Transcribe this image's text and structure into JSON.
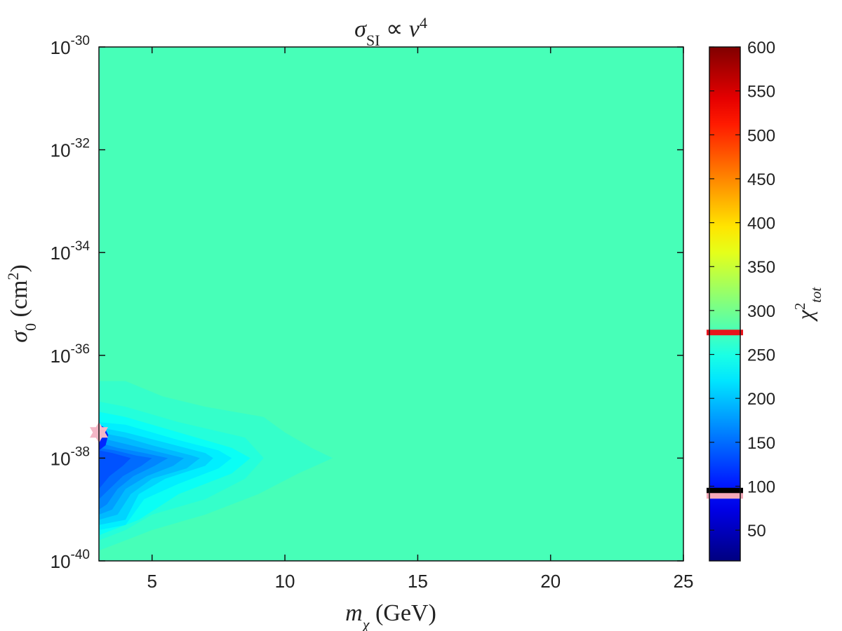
{
  "chart_data": {
    "type": "heatmap",
    "plot_style": "filled-contour",
    "title": {
      "parts": [
        {
          "text": "σ",
          "style": "italic"
        },
        {
          "text": "SI",
          "style": "sub"
        },
        {
          "text": " ∝ ",
          "style": "normal"
        },
        {
          "text": "v",
          "style": "italic"
        },
        {
          "text": "4",
          "style": "sup"
        }
      ]
    },
    "x_axis": {
      "label_parts": [
        {
          "text": "m",
          "style": "italic"
        },
        {
          "text": "χ",
          "style": "sub-italic"
        },
        {
          "text": " (GeV)",
          "style": "normal"
        }
      ],
      "range": [
        3,
        25
      ],
      "scale": "linear",
      "ticks": [
        {
          "value": 5,
          "label": "5"
        },
        {
          "value": 10,
          "label": "10"
        },
        {
          "value": 15,
          "label": "15"
        },
        {
          "value": 20,
          "label": "20"
        },
        {
          "value": 25,
          "label": "25"
        }
      ]
    },
    "y_axis": {
      "label_parts": [
        {
          "text": "σ",
          "style": "italic"
        },
        {
          "text": "0",
          "style": "sub"
        },
        {
          "text": " (cm",
          "style": "normal"
        },
        {
          "text": "2",
          "style": "sup"
        },
        {
          "text": ")",
          "style": "normal"
        }
      ],
      "range": [
        -40,
        -30
      ],
      "scale": "log10",
      "ticks": [
        {
          "exp": -30,
          "base": "10",
          "sup": "-30"
        },
        {
          "exp": -32,
          "base": "10",
          "sup": "-32"
        },
        {
          "exp": -34,
          "base": "10",
          "sup": "-34"
        },
        {
          "exp": -36,
          "base": "10",
          "sup": "-36"
        },
        {
          "exp": -38,
          "base": "10",
          "sup": "-38"
        },
        {
          "exp": -40,
          "base": "10",
          "sup": "-40"
        }
      ]
    },
    "colorbar": {
      "colormap": "jet",
      "range": [
        15,
        600
      ],
      "label_parts": [
        {
          "text": "χ",
          "style": "italic"
        },
        {
          "text": "2",
          "style": "sup"
        },
        {
          "text": "tot",
          "style": "sub-italic"
        }
      ],
      "ticks": [
        {
          "value": 50,
          "label": "50"
        },
        {
          "value": 100,
          "label": "100"
        },
        {
          "value": 150,
          "label": "150"
        },
        {
          "value": 200,
          "label": "200"
        },
        {
          "value": 250,
          "label": "250"
        },
        {
          "value": 300,
          "label": "300"
        },
        {
          "value": 350,
          "label": "350"
        },
        {
          "value": 400,
          "label": "400"
        },
        {
          "value": 450,
          "label": "450"
        },
        {
          "value": 500,
          "label": "500"
        },
        {
          "value": 550,
          "label": "550"
        },
        {
          "value": 600,
          "label": "600"
        }
      ],
      "markers": [
        {
          "value": 275,
          "color": "#e8141c"
        },
        {
          "value": 95,
          "color": "#000000"
        },
        {
          "value": 89,
          "color": "#f4a9b8"
        }
      ]
    },
    "background_level": 275,
    "contour_regions": [
      {
        "level": 265,
        "points": [
          [
            3,
            -36.5
          ],
          [
            4,
            -36.5
          ],
          [
            5.4,
            -36.8
          ],
          [
            7,
            -37.0
          ],
          [
            9.2,
            -37.2
          ],
          [
            10,
            -37.5
          ],
          [
            11,
            -37.8
          ],
          [
            11.8,
            -38.0
          ],
          [
            10.5,
            -38.3
          ],
          [
            9,
            -38.7
          ],
          [
            7,
            -39.1
          ],
          [
            5,
            -39.4
          ],
          [
            4,
            -39.6
          ],
          [
            3,
            -39.8
          ]
        ]
      },
      {
        "level": 255,
        "points": [
          [
            3,
            -36.9
          ],
          [
            4,
            -37.0
          ],
          [
            6,
            -37.3
          ],
          [
            8.5,
            -37.6
          ],
          [
            9.2,
            -38.0
          ],
          [
            8.5,
            -38.4
          ],
          [
            7,
            -38.8
          ],
          [
            5,
            -39.1
          ],
          [
            4,
            -39.4
          ],
          [
            3,
            -39.6
          ]
        ]
      },
      {
        "level": 240,
        "points": [
          [
            3,
            -37.1
          ],
          [
            4,
            -37.2
          ],
          [
            6,
            -37.5
          ],
          [
            8,
            -37.8
          ],
          [
            8.7,
            -38.0
          ],
          [
            8,
            -38.3
          ],
          [
            6,
            -38.7
          ],
          [
            4.5,
            -39.2
          ],
          [
            3,
            -39.5
          ]
        ]
      },
      {
        "level": 225,
        "points": [
          [
            3,
            -37.3
          ],
          [
            4,
            -37.35
          ],
          [
            6,
            -37.65
          ],
          [
            7.5,
            -37.85
          ],
          [
            8,
            -38.0
          ],
          [
            7.5,
            -38.2
          ],
          [
            6,
            -38.5
          ],
          [
            4.7,
            -38.8
          ],
          [
            4,
            -39.3
          ],
          [
            3,
            -39.4
          ]
        ]
      },
      {
        "level": 210,
        "points": [
          [
            3,
            -37.4
          ],
          [
            4,
            -37.5
          ],
          [
            5.5,
            -37.7
          ],
          [
            7,
            -37.9
          ],
          [
            7.3,
            -38.0
          ],
          [
            7,
            -38.15
          ],
          [
            5.5,
            -38.4
          ],
          [
            4.5,
            -38.7
          ],
          [
            4,
            -39.2
          ],
          [
            3,
            -39.3
          ]
        ]
      },
      {
        "level": 195,
        "points": [
          [
            3,
            -37.5
          ],
          [
            4,
            -37.6
          ],
          [
            5,
            -37.75
          ],
          [
            6.5,
            -37.95
          ],
          [
            6.8,
            -38.0
          ],
          [
            6.3,
            -38.2
          ],
          [
            5,
            -38.4
          ],
          [
            4.2,
            -38.7
          ],
          [
            3.7,
            -39.1
          ],
          [
            3,
            -39.2
          ]
        ]
      },
      {
        "level": 180,
        "points": [
          [
            3,
            -37.6
          ],
          [
            3.8,
            -37.7
          ],
          [
            5,
            -37.85
          ],
          [
            6.2,
            -38.0
          ],
          [
            5.8,
            -38.15
          ],
          [
            4.8,
            -38.35
          ],
          [
            4,
            -38.6
          ],
          [
            3.5,
            -39.0
          ],
          [
            3,
            -39.1
          ]
        ]
      },
      {
        "level": 165,
        "points": [
          [
            3,
            -37.7
          ],
          [
            3.7,
            -37.8
          ],
          [
            4.7,
            -37.9
          ],
          [
            5.6,
            -38.0
          ],
          [
            5.1,
            -38.15
          ],
          [
            4.3,
            -38.35
          ],
          [
            3.7,
            -38.6
          ],
          [
            3.3,
            -38.9
          ],
          [
            3,
            -39.0
          ]
        ]
      },
      {
        "level": 150,
        "points": [
          [
            3,
            -37.8
          ],
          [
            3.6,
            -37.85
          ],
          [
            4.4,
            -37.95
          ],
          [
            5,
            -38.0
          ],
          [
            4.6,
            -38.15
          ],
          [
            3.9,
            -38.35
          ],
          [
            3.4,
            -38.6
          ],
          [
            3,
            -38.8
          ]
        ]
      },
      {
        "level": 135,
        "points": [
          [
            3,
            -37.85
          ],
          [
            3.5,
            -37.9
          ],
          [
            4.2,
            -38.0
          ],
          [
            3.9,
            -38.15
          ],
          [
            3.4,
            -38.35
          ],
          [
            3,
            -38.6
          ]
        ]
      },
      {
        "level": 110,
        "points": [
          [
            3,
            -37.35
          ],
          [
            3.2,
            -37.4
          ],
          [
            3.35,
            -37.55
          ],
          [
            3.25,
            -37.75
          ],
          [
            3,
            -37.85
          ]
        ]
      }
    ],
    "best_fit_marker": {
      "x": 3.0,
      "y": -37.5,
      "shape": "hexagram",
      "color": "#f4b6c6"
    }
  }
}
